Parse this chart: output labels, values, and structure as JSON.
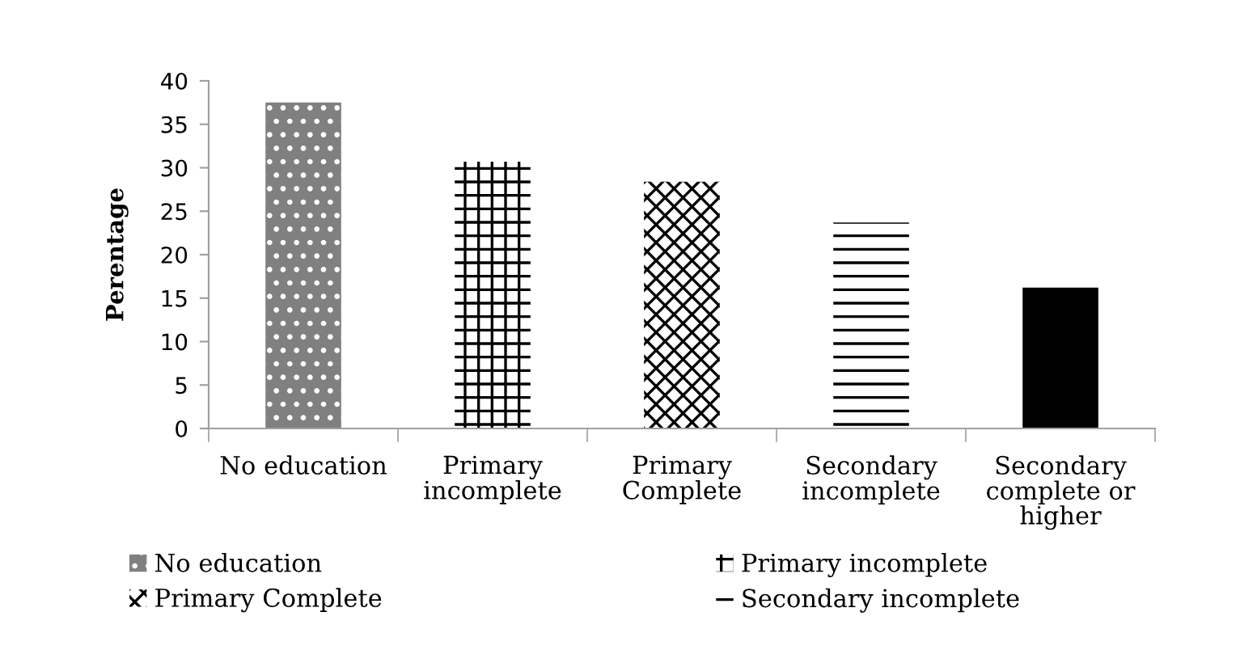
{
  "chart_data": {
    "type": "bar",
    "ylabel": "Perentage",
    "categories": [
      "No education",
      "Primary incomplete",
      "Primary Complete",
      "Secondary incomplete",
      "Secondary complete or higher"
    ],
    "series": [
      {
        "name": "No education",
        "color": "#808080",
        "values": [
          37.5,
          null,
          null,
          null,
          null
        ]
      },
      {
        "name": "Primary incomplete",
        "color": "#ffffff",
        "values": [
          null,
          30.7,
          null,
          null,
          null
        ]
      },
      {
        "name": "Primary Complete",
        "color": "#ffffff",
        "values": [
          null,
          null,
          28.4,
          null,
          null
        ]
      },
      {
        "name": "Secondary incomplete",
        "color": "#ffffff",
        "values": [
          null,
          null,
          null,
          23.7,
          null
        ]
      },
      {
        "color": "#000000",
        "values": [
          null,
          null,
          null,
          null,
          16.2
        ]
      }
    ],
    "ylim": [
      0,
      40
    ],
    "yticks": [
      0,
      5,
      10,
      15,
      20,
      25,
      30,
      35,
      40
    ],
    "legend": "bottom"
  }
}
